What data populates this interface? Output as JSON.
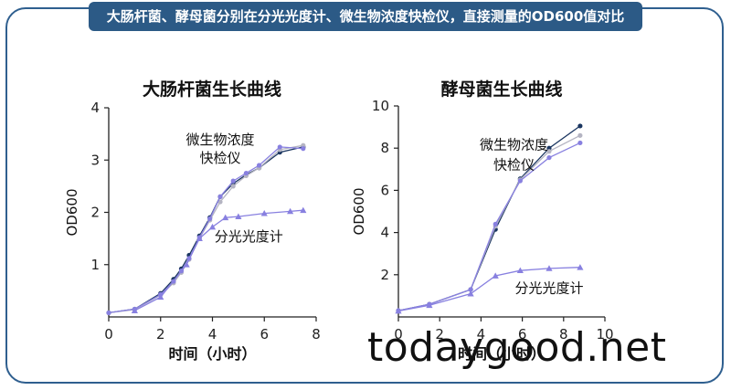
{
  "banner": {
    "text": "大肠杆菌、酵母菌分别在分光光度计、微生物浓度快检仪，直接测量的OD600值对比"
  },
  "watermark": {
    "text": "todaygood.net"
  },
  "colors": {
    "banner_bg": "#2c5a86",
    "frame": "#2f5f8f",
    "dark_series": "#1a3560",
    "light_series": "#b4b4c2",
    "purple_series": "#8880e0"
  },
  "chart_data": [
    {
      "type": "line",
      "title": "大肠杆菌生长曲线",
      "xlabel": "时间（小时）",
      "ylabel": "OD600",
      "xlim": [
        0,
        8
      ],
      "ylim": [
        0,
        4
      ],
      "xticks": [
        "0",
        "2",
        "4",
        "6",
        "8"
      ],
      "yticks": [
        "1",
        "2",
        "3",
        "4"
      ],
      "grid": false,
      "annotations": [
        {
          "text": "微生物浓度",
          "x": 4.3,
          "y": 3.3
        },
        {
          "text": "快检仪",
          "x": 4.3,
          "y": 2.95
        },
        {
          "text": "分光光度计",
          "x": 5.4,
          "y": 1.45
        }
      ],
      "series": [
        {
          "color": "#1a3560",
          "x": [
            0,
            1,
            2,
            2.5,
            2.8,
            3.1,
            3.5,
            3.9,
            4.3,
            4.8,
            5.3,
            5.8,
            6.6,
            7.5
          ],
          "y": [
            0.08,
            0.15,
            0.45,
            0.72,
            0.92,
            1.18,
            1.55,
            1.9,
            2.3,
            2.55,
            2.72,
            2.85,
            3.15,
            3.25
          ]
        },
        {
          "color": "#b4b4c2",
          "x": [
            0,
            1,
            2,
            2.5,
            2.8,
            3.1,
            3.5,
            3.9,
            4.3,
            4.8,
            5.3,
            5.8,
            6.6,
            7.5
          ],
          "y": [
            0.08,
            0.14,
            0.42,
            0.65,
            0.85,
            1.1,
            1.5,
            1.85,
            2.2,
            2.5,
            2.7,
            2.85,
            3.2,
            3.28
          ]
        },
        {
          "color": "#8880e0",
          "x": [
            0,
            1,
            2,
            2.5,
            2.8,
            3.1,
            3.5,
            3.9,
            4.3,
            4.8,
            5.3,
            5.8,
            6.6,
            7.5
          ],
          "y": [
            0.08,
            0.15,
            0.43,
            0.68,
            0.88,
            1.12,
            1.52,
            1.88,
            2.3,
            2.6,
            2.75,
            2.9,
            3.25,
            3.22
          ]
        },
        {
          "color": "#8880e0",
          "marker": "triangle",
          "x": [
            1,
            2,
            3,
            3.5,
            4,
            4.5,
            5,
            6,
            7,
            7.5
          ],
          "y": [
            0.12,
            0.38,
            1.0,
            1.5,
            1.72,
            1.9,
            1.92,
            1.98,
            2.02,
            2.04
          ]
        }
      ]
    },
    {
      "type": "line",
      "title": "酵母菌生长曲线",
      "xlabel": "时间（小时）",
      "ylabel": "OD600",
      "xlim": [
        0,
        10
      ],
      "ylim": [
        0,
        10
      ],
      "xticks": [
        "0",
        "2",
        "4",
        "6",
        "8",
        "10"
      ],
      "yticks": [
        "2",
        "4",
        "6",
        "8",
        "10"
      ],
      "grid": false,
      "annotations": [
        {
          "text": "微生物浓度",
          "x": 5.6,
          "y": 7.95
        },
        {
          "text": "快检仪",
          "x": 5.6,
          "y": 7.0
        },
        {
          "text": "分光光度计",
          "x": 7.3,
          "y": 1.15
        }
      ],
      "series": [
        {
          "color": "#1a3560",
          "x": [
            0,
            1.5,
            3.5,
            4.7,
            5.9,
            7.3,
            8.8
          ],
          "y": [
            0.3,
            0.6,
            1.3,
            4.15,
            6.55,
            8.0,
            9.05
          ]
        },
        {
          "color": "#b4b4c2",
          "x": [
            0,
            1.5,
            3.5,
            4.7,
            5.9,
            7.3,
            8.8
          ],
          "y": [
            0.3,
            0.6,
            1.3,
            4.3,
            6.5,
            7.85,
            8.6
          ]
        },
        {
          "color": "#8880e0",
          "x": [
            0,
            1.5,
            3.5,
            4.7,
            5.9,
            7.3,
            8.8
          ],
          "y": [
            0.3,
            0.6,
            1.3,
            4.4,
            6.45,
            7.55,
            8.25
          ]
        },
        {
          "color": "#8880e0",
          "marker": "triangle",
          "x": [
            0,
            1.5,
            3.5,
            4.7,
            5.9,
            7.3,
            8.8
          ],
          "y": [
            0.28,
            0.55,
            1.1,
            1.95,
            2.2,
            2.3,
            2.35
          ]
        }
      ]
    }
  ]
}
